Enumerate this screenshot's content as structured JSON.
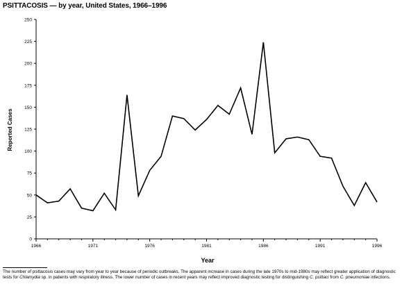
{
  "header": {
    "title": "PSITTACOSIS — by year, United States, 1966–1996"
  },
  "footnote": {
    "part1": "The number of psittacosis cases may vary from year to year because of periodic outbreaks. The apparent increase in cases during the late 1970s to mid-1980s may reflect greater application of diagnostic tests for ",
    "part2": "Chlamydia",
    "part3": " sp. in patients with respiratory illness. The lower number of cases in recent years may reflect improved diagnostic testing for distinguishing ",
    "part4": "C. psittaci",
    "part5": " from ",
    "part6": "C. pneumoniae",
    "part7": " infections."
  },
  "chart_data": {
    "type": "line",
    "title": "PSITTACOSIS — by year, United States, 1966–1996",
    "xlabel": "Year",
    "ylabel": "Reported Cases",
    "xlim": [
      1966,
      1996
    ],
    "ylim": [
      0,
      250
    ],
    "x_ticks": [
      1966,
      1971,
      1976,
      1981,
      1986,
      1991,
      1996
    ],
    "y_ticks": [
      0,
      25,
      50,
      75,
      100,
      125,
      150,
      175,
      200,
      225,
      250
    ],
    "grid": false,
    "line_color": "#000000",
    "series": [
      {
        "x": [
          1966,
          1967,
          1968,
          1969,
          1970,
          1971,
          1972,
          1973,
          1974,
          1975,
          1976,
          1977,
          1978,
          1979,
          1980,
          1981,
          1982,
          1983,
          1984,
          1985,
          1986,
          1987,
          1988,
          1989,
          1990,
          1991,
          1992,
          1993,
          1994,
          1995,
          1996
        ],
        "values": [
          50,
          41,
          43,
          57,
          35,
          32,
          52,
          33,
          164,
          49,
          78,
          94,
          140,
          137,
          124,
          136,
          152,
          142,
          172,
          119,
          224,
          98,
          114,
          116,
          113,
          94,
          92,
          60,
          38,
          64,
          42
        ]
      }
    ]
  }
}
